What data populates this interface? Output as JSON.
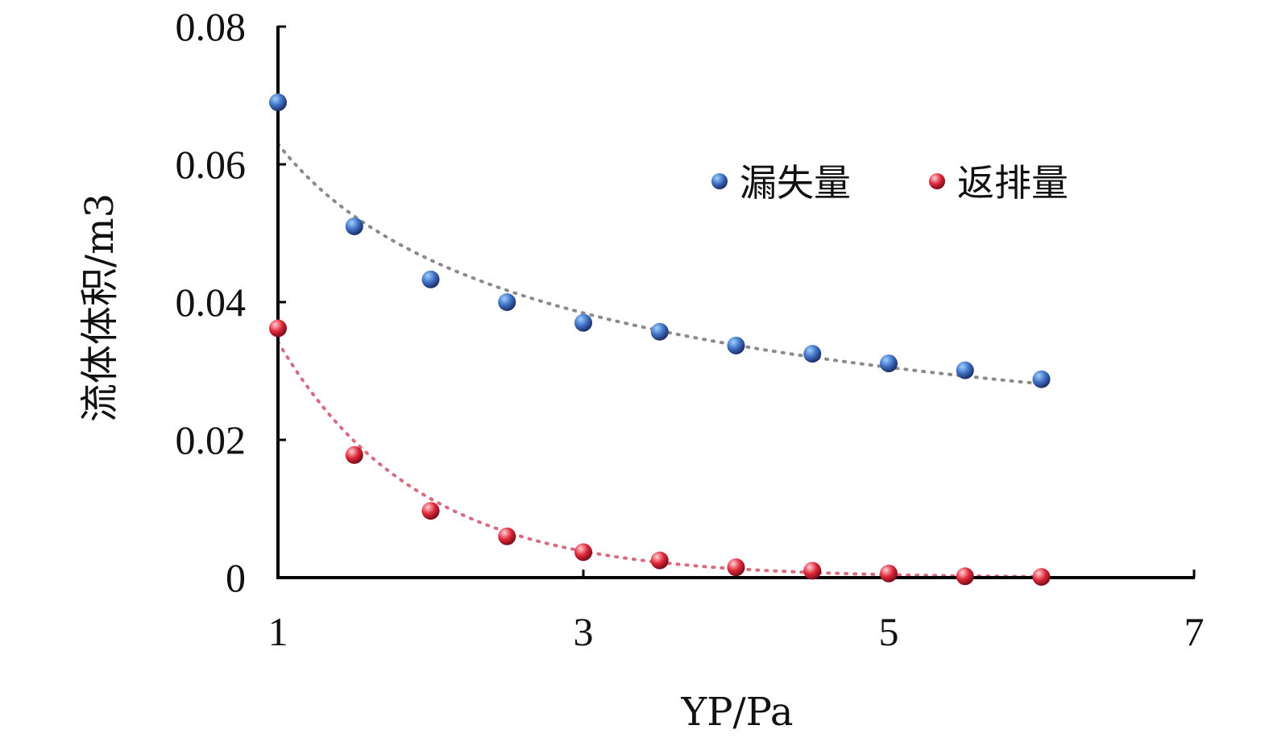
{
  "chart_data": {
    "type": "scatter",
    "xlabel": "YP/Pa",
    "ylabel": "流体体积/m3",
    "xlim": [
      1,
      7
    ],
    "ylim": [
      0,
      0.08
    ],
    "x_ticks": [
      "1",
      "3",
      "5",
      "7"
    ],
    "y_ticks": [
      "0",
      "0.02",
      "0.04",
      "0.06",
      "0.08"
    ],
    "legend_position": "top-right",
    "trendlines": "dotted",
    "series": [
      {
        "name": "漏失量",
        "color": "#3f6fc2",
        "x": [
          1,
          1.5,
          2,
          2.5,
          3,
          3.5,
          4,
          4.5,
          5,
          5.5,
          6
        ],
        "y": [
          0.069,
          0.051,
          0.0433,
          0.04,
          0.037,
          0.0357,
          0.0337,
          0.0325,
          0.0311,
          0.0301,
          0.0288
        ]
      },
      {
        "name": "返排量",
        "color": "#e0283b",
        "x": [
          1,
          1.5,
          2,
          2.5,
          3,
          3.5,
          4,
          4.5,
          5,
          5.5,
          6
        ],
        "y": [
          0.0362,
          0.0178,
          0.0097,
          0.006,
          0.0037,
          0.0025,
          0.0015,
          0.001,
          0.0006,
          0.0002,
          0.0001
        ]
      }
    ]
  }
}
